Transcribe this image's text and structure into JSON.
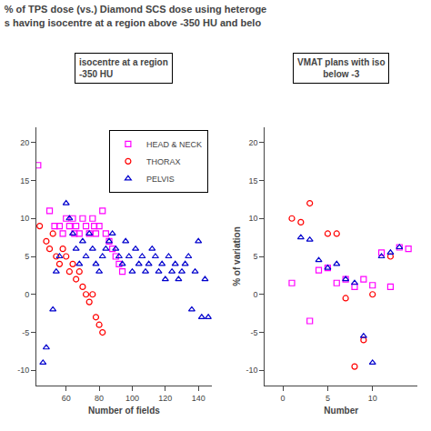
{
  "chart_data": [
    {
      "type": "scatter",
      "title": "% of TPS dose (vs.) Diamond SCS dose using heteroge\ns having isocentre at a region above -350 HU and belo",
      "subtitle": "isocentre at a region\n-350 HU",
      "xlabel": "Number of fields",
      "xlim": [
        42,
        148
      ],
      "ylim": [
        -12,
        22
      ],
      "xticks": [
        60,
        80,
        100,
        120,
        140
      ],
      "yticks": [
        -10,
        -5,
        0,
        5,
        10,
        15,
        20
      ],
      "grid": false,
      "legend": "upper right",
      "series": [
        {
          "name": "HEAD & NECK",
          "color": "#FF00FF",
          "marker": "square",
          "x": [
            43,
            50,
            53,
            56,
            58,
            60,
            62,
            64,
            65,
            66,
            68,
            70,
            72,
            74,
            76,
            77,
            78,
            80,
            82,
            84,
            86,
            88,
            90,
            92,
            94
          ],
          "values": [
            17,
            11,
            9,
            9,
            8,
            10,
            9,
            10,
            8,
            9,
            8,
            10,
            9,
            8,
            10,
            9,
            8,
            9,
            11,
            8,
            7,
            6,
            5,
            4,
            3
          ]
        },
        {
          "name": "THORAX",
          "color": "#FF0000",
          "marker": "circle",
          "x": [
            44,
            48,
            50,
            52,
            54,
            56,
            58,
            60,
            62,
            64,
            66,
            68,
            70,
            72,
            74,
            76,
            78,
            80,
            82
          ],
          "values": [
            9,
            7,
            6,
            8,
            5,
            4,
            6,
            5,
            3,
            4,
            2,
            3,
            1,
            0,
            -1,
            0,
            -3,
            -4,
            -5
          ]
        },
        {
          "name": "PELVIS",
          "color": "#0000CD",
          "marker": "triangle-up",
          "x": [
            46,
            48,
            52,
            54,
            56,
            60,
            62,
            64,
            66,
            68,
            70,
            72,
            74,
            76,
            78,
            80,
            82,
            84,
            86,
            88,
            90,
            92,
            94,
            96,
            98,
            100,
            102,
            104,
            106,
            108,
            110,
            112,
            114,
            116,
            118,
            120,
            122,
            124,
            126,
            128,
            130,
            132,
            134,
            136,
            138,
            140,
            142,
            144,
            146
          ],
          "values": [
            -9,
            -7,
            -2,
            3,
            5,
            12,
            10,
            8,
            6,
            4,
            7,
            5,
            8,
            6,
            4,
            3,
            5,
            6,
            7,
            8,
            6,
            5,
            4,
            7,
            5,
            3,
            6,
            4,
            5,
            3,
            4,
            6,
            5,
            3,
            4,
            2,
            5,
            3,
            4,
            2,
            3,
            4,
            5,
            -2,
            3,
            7,
            -3,
            2,
            -3
          ]
        }
      ]
    },
    {
      "type": "scatter",
      "subtitle": "VMAT plans with iso\nbelow -3",
      "xlabel": "Number",
      "ylabel": "% of variation",
      "xlim": [
        -2,
        15
      ],
      "ylim": [
        -12,
        22
      ],
      "xticks": [
        0,
        5,
        10
      ],
      "yticks": [
        -10,
        -5,
        0,
        5,
        10,
        15,
        20
      ],
      "grid": false,
      "series": [
        {
          "name": "HEAD & NECK",
          "color": "#FF00FF",
          "marker": "square",
          "x": [
            1.0,
            3.0,
            4.0,
            5.0,
            6.0,
            7.0,
            8.0,
            9.0,
            10.0,
            11.0,
            12.0,
            13.0,
            14.0
          ],
          "values": [
            1.5,
            -3.5,
            3.2,
            3.5,
            1.5,
            2.0,
            1.0,
            2.0,
            1.2,
            5.5,
            1.0,
            6.2,
            6.0
          ]
        },
        {
          "name": "THORAX",
          "color": "#FF0000",
          "marker": "circle",
          "x": [
            1.0,
            2.0,
            3.0,
            5.0,
            6.0,
            7.0,
            8.0,
            9.0,
            10.0,
            12.0
          ],
          "values": [
            10.0,
            9.5,
            12.0,
            8.0,
            8.0,
            -0.5,
            -9.5,
            -6.0,
            0.0,
            5.0
          ]
        },
        {
          "name": "PELVIS",
          "color": "#0000CD",
          "marker": "triangle-up",
          "x": [
            2.0,
            3.0,
            4.0,
            5.0,
            6.0,
            7.0,
            8.0,
            9.0,
            10.0,
            11.0,
            12.0,
            13.0
          ],
          "values": [
            7.5,
            7.2,
            4.5,
            3.5,
            4.0,
            2.0,
            1.5,
            -5.5,
            -9.0,
            5.0,
            5.5,
            6.2
          ]
        }
      ]
    }
  ]
}
